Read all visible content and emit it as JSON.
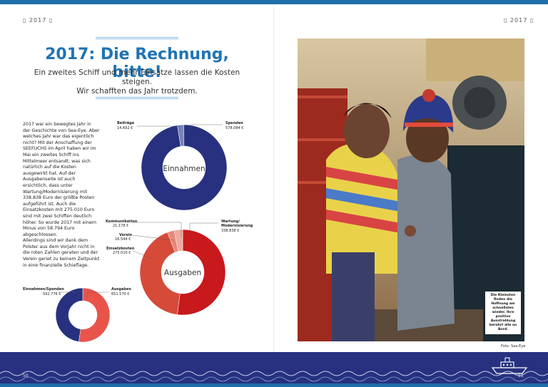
{
  "header": {
    "year_left": "▯ 2017 ▯",
    "year_right": "▯ 2017 ▯"
  },
  "title": "2017: Die Rechnung, bitte!",
  "subtitle_line1": "Ein zweites Schiff und mehr Einsätze lassen die Kosten steigen.",
  "subtitle_line2": "Wir schafften das Jahr trotzdem.",
  "body_paragraphs": [
    "2017 war ein bewegtes Jahr in der Geschichte von Sea-Eye. Aber welches Jahr war das eigentlich nicht? Mit der Anschaffung der SEEFUCHS im April haben wir im Mai ein zweites Schiff ins Mittelmeer entsandt, was sich natürlich auf die Kosten ausgewirkt hat. Auf der Ausgabenseite ist auch ersichtlich, dass unter Wartung/Modernisierung mit 338.838 Euro der größte Posten aufgeführt ist. Auch die Einsatzkosten mit 275.010 Euro sind mit zwei Schiffen deutlich höher. So wurde 2017 mit einem Minus von 58.794 Euro abgeschlossen.",
    "Allerdings sind wir dank dem Polster aus dem Vorjahr nicht in die roten Zahlen geraten und der Verein geriet zu keinem Zeitpunkt in eine finanzielle Schieflage."
  ],
  "chart_data": [
    {
      "type": "pie",
      "title": "Einnahmen",
      "series": [
        {
          "label_line1": "Beiträge",
          "label_line2": "",
          "amount": "14.692 €",
          "value": 14692,
          "color": "#7c83b8"
        },
        {
          "label_line1": "Spenden",
          "label_line2": "",
          "amount": "578.084 €",
          "value": 578084,
          "color": "#27317f"
        }
      ]
    },
    {
      "type": "pie",
      "title": "Ausgaben",
      "series": [
        {
          "label_line1": "Wartung/",
          "label_line2": "Modernisierung",
          "amount": "338.838 €",
          "value": 338838,
          "color": "#c8191d"
        },
        {
          "label_line1": "Einsatzkosten",
          "label_line2": "",
          "amount": "275.010 €",
          "value": 275010,
          "color": "#d64a38"
        },
        {
          "label_line1": "Verein",
          "label_line2": "",
          "amount": "16.544 €",
          "value": 16544,
          "color": "#e6887a"
        },
        {
          "label_line1": "Kommunikation",
          "label_line2": "",
          "amount": "21.178 €",
          "value": 21178,
          "color": "#efaa9d"
        }
      ]
    },
    {
      "type": "pie",
      "title": "",
      "series": [
        {
          "label_line1": "Ausgaben",
          "label_line2": "",
          "amount": "651.570 €",
          "value": 651570,
          "color": "#e8544a"
        },
        {
          "label_line1": "Einnahmen/Spenden",
          "label_line2": "",
          "amount": "592.776 €",
          "value": 592776,
          "color": "#27317f"
        }
      ]
    }
  ],
  "photo": {
    "caption": "Die Kleinsten finden die Hoffnung am schnellsten wieder. Ihre positive Ausstrahlung berührt alle an Bord.",
    "credit": "Foto: Sea-Eye"
  },
  "footer": {
    "page_left": "50",
    "page_right": "51"
  }
}
